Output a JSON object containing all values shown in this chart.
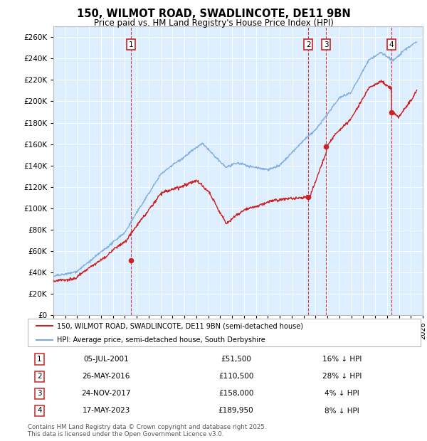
{
  "title": "150, WILMOT ROAD, SWADLINCOTE, DE11 9BN",
  "subtitle": "Price paid vs. HM Land Registry's House Price Index (HPI)",
  "ylim": [
    0,
    270000
  ],
  "yticks": [
    0,
    20000,
    40000,
    60000,
    80000,
    100000,
    120000,
    140000,
    160000,
    180000,
    200000,
    220000,
    240000,
    260000
  ],
  "xlim_start": 1995.0,
  "xlim_end": 2026.0,
  "background_color": "#ffffff",
  "plot_bg_color": "#ddeeff",
  "grid_color": "#ffffff",
  "hpi_color": "#7aaadd",
  "price_color": "#cc2222",
  "sale_points": [
    {
      "date_num": 2001.51,
      "price": 51500,
      "label": "1"
    },
    {
      "date_num": 2016.4,
      "price": 110500,
      "label": "2"
    },
    {
      "date_num": 2017.9,
      "price": 158000,
      "label": "3"
    },
    {
      "date_num": 2023.37,
      "price": 189950,
      "label": "4"
    }
  ],
  "vline_color": "#cc2222",
  "footer_text": "Contains HM Land Registry data © Crown copyright and database right 2025.\nThis data is licensed under the Open Government Licence v3.0.",
  "legend_line1": "150, WILMOT ROAD, SWADLINCOTE, DE11 9BN (semi-detached house)",
  "legend_line2": "HPI: Average price, semi-detached house, South Derbyshire",
  "table_entries": [
    {
      "num": "1",
      "date": "05-JUL-2001",
      "price": "£51,500",
      "pct": "16% ↓ HPI"
    },
    {
      "num": "2",
      "date": "26-MAY-2016",
      "price": "£110,500",
      "pct": "28% ↓ HPI"
    },
    {
      "num": "3",
      "date": "24-NOV-2017",
      "price": "£158,000",
      "pct": "4% ↓ HPI"
    },
    {
      "num": "4",
      "date": "17-MAY-2023",
      "price": "£189,950",
      "pct": "8% ↓ HPI"
    }
  ]
}
